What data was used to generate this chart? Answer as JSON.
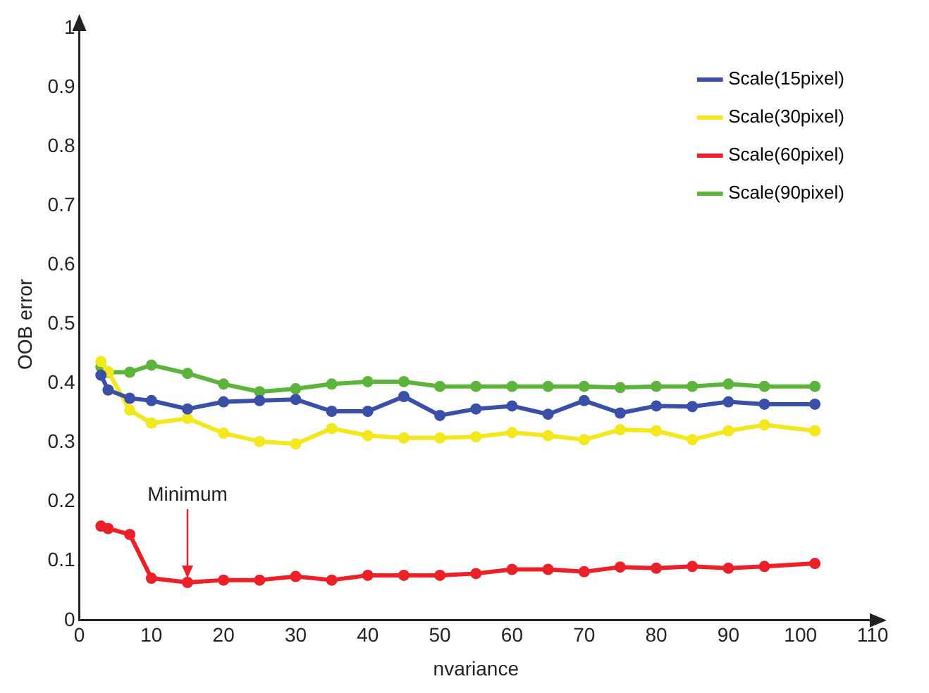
{
  "chart_data": {
    "type": "line",
    "xlabel": "nvariance",
    "ylabel": "OOB error",
    "x": [
      3,
      4,
      7,
      10,
      15,
      20,
      25,
      30,
      35,
      40,
      45,
      50,
      55,
      60,
      65,
      70,
      75,
      80,
      85,
      90,
      95,
      102
    ],
    "series": [
      {
        "name": "Scale(15pixel)",
        "color": "#3a4fa8",
        "values": [
          0.414,
          0.389,
          0.375,
          0.371,
          0.357,
          0.369,
          0.371,
          0.373,
          0.353,
          0.353,
          0.378,
          0.346,
          0.357,
          0.362,
          0.348,
          0.371,
          0.35,
          0.362,
          0.361,
          0.369,
          0.365,
          0.365
        ]
      },
      {
        "name": "Scale(30pixel)",
        "color": "#f2e81c",
        "values": [
          0.437,
          0.42,
          0.355,
          0.333,
          0.341,
          0.316,
          0.302,
          0.298,
          0.324,
          0.312,
          0.308,
          0.308,
          0.31,
          0.317,
          0.312,
          0.305,
          0.322,
          0.32,
          0.305,
          0.32,
          0.33,
          0.32
        ]
      },
      {
        "name": "Scale(60pixel)",
        "color": "#ee2027",
        "values": [
          0.159,
          0.155,
          0.145,
          0.071,
          0.064,
          0.068,
          0.068,
          0.074,
          0.068,
          0.076,
          0.076,
          0.076,
          0.079,
          0.086,
          0.086,
          0.082,
          0.09,
          0.088,
          0.091,
          0.088,
          0.091,
          0.096
        ]
      },
      {
        "name": "Scale(90pixel)",
        "color": "#5cb53a",
        "values": [
          0.428,
          0.419,
          0.419,
          0.431,
          0.417,
          0.399,
          0.386,
          0.391,
          0.399,
          0.403,
          0.403,
          0.395,
          0.395,
          0.395,
          0.395,
          0.395,
          0.393,
          0.395,
          0.395,
          0.399,
          0.395,
          0.395
        ]
      }
    ],
    "xlim": [
      0,
      110
    ],
    "xticks": [
      0,
      10,
      20,
      30,
      40,
      50,
      60,
      70,
      80,
      90,
      100,
      110
    ],
    "ylim": [
      0,
      1
    ],
    "yticks": [
      0,
      0.1,
      0.2,
      0.3,
      0.4,
      0.5,
      0.6,
      0.7,
      0.8,
      0.9,
      1
    ],
    "annotations": [
      {
        "text": "Minimum",
        "x": 15,
        "y": 0.064
      }
    ],
    "grid": false,
    "legend": "top right",
    "marker": "circle",
    "line_style": "solid"
  }
}
